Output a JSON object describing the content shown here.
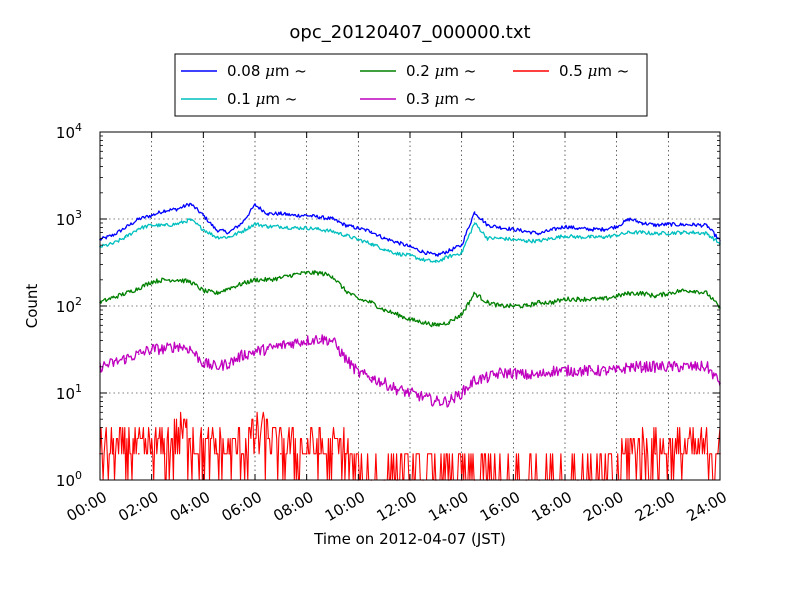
{
  "chart_data": {
    "type": "line",
    "title": "opc_20120407_000000.txt",
    "xlabel": "Time on 2012-04-07 (JST)",
    "ylabel": "Count",
    "x_scale": "time",
    "y_scale": "log",
    "xlim": [
      "00:00",
      "24:00"
    ],
    "ylim": [
      1,
      10000
    ],
    "grid": true,
    "legend_position": "top-center, above plot",
    "x_ticks": [
      "00:00",
      "02:00",
      "04:00",
      "06:00",
      "08:00",
      "10:00",
      "12:00",
      "14:00",
      "16:00",
      "18:00",
      "20:00",
      "22:00",
      "24:00"
    ],
    "y_ticks": [
      {
        "value": 1,
        "base": "10",
        "exp": "0"
      },
      {
        "value": 10,
        "base": "10",
        "exp": "1"
      },
      {
        "value": 100,
        "base": "10",
        "exp": "2"
      },
      {
        "value": 1000,
        "base": "10",
        "exp": "3"
      },
      {
        "value": 10000,
        "base": "10",
        "exp": "4"
      }
    ],
    "x_hours": [
      0,
      0.5,
      1,
      1.5,
      2,
      2.5,
      3,
      3.5,
      4,
      4.5,
      5,
      5.5,
      6,
      6.5,
      7,
      7.5,
      8,
      8.5,
      9,
      9.5,
      10,
      10.5,
      11,
      11.5,
      12,
      12.5,
      13,
      13.5,
      14,
      14.5,
      15,
      15.5,
      16,
      16.5,
      17,
      17.5,
      18,
      18.5,
      19,
      19.5,
      20,
      20.5,
      21,
      21.5,
      22,
      22.5,
      23,
      23.5,
      24
    ],
    "series": [
      {
        "name": "0.08 μm ~",
        "legend_prefix": "0.08 ",
        "legend_suffix": " ~",
        "color": "#0000ff",
        "values": [
          580,
          650,
          800,
          1000,
          1100,
          1250,
          1300,
          1500,
          1100,
          750,
          700,
          900,
          1450,
          1150,
          1150,
          1100,
          1100,
          1050,
          1000,
          850,
          780,
          720,
          600,
          540,
          480,
          420,
          380,
          430,
          500,
          1200,
          850,
          800,
          760,
          720,
          680,
          750,
          820,
          780,
          760,
          760,
          820,
          1000,
          900,
          850,
          870,
          860,
          860,
          840,
          560
        ]
      },
      {
        "name": "0.1 μm ~",
        "legend_prefix": "0.1 ",
        "legend_suffix": " ~",
        "color": "#00bfbf",
        "values": [
          480,
          520,
          620,
          780,
          850,
          840,
          880,
          980,
          760,
          620,
          620,
          720,
          880,
          820,
          820,
          790,
          790,
          760,
          720,
          650,
          580,
          520,
          450,
          400,
          380,
          340,
          320,
          370,
          410,
          900,
          600,
          600,
          580,
          560,
          560,
          600,
          640,
          620,
          620,
          620,
          650,
          700,
          700,
          680,
          690,
          700,
          700,
          680,
          520
        ]
      },
      {
        "name": "0.2 μm ~",
        "legend_prefix": "0.2 ",
        "legend_suffix": " ~",
        "color": "#008000",
        "values": [
          110,
          125,
          140,
          160,
          190,
          200,
          200,
          190,
          150,
          140,
          160,
          180,
          200,
          200,
          210,
          230,
          240,
          240,
          220,
          150,
          120,
          110,
          90,
          80,
          70,
          65,
          60,
          65,
          80,
          140,
          110,
          100,
          100,
          100,
          110,
          110,
          120,
          120,
          120,
          120,
          130,
          140,
          140,
          130,
          140,
          150,
          150,
          140,
          95
        ]
      },
      {
        "name": "0.3 μm ~",
        "legend_prefix": "0.3 ",
        "legend_suffix": " ~",
        "color": "#bf00bf",
        "values": [
          20,
          22,
          25,
          28,
          32,
          32,
          35,
          32,
          22,
          20,
          22,
          27,
          30,
          32,
          35,
          38,
          40,
          42,
          40,
          25,
          17,
          15,
          13,
          11,
          10,
          9,
          8,
          8,
          10,
          14,
          15,
          17,
          17,
          16,
          16,
          18,
          18,
          18,
          18,
          18,
          18,
          20,
          20,
          20,
          20,
          20,
          20,
          20,
          13
        ]
      },
      {
        "name": "0.5 μm ~",
        "legend_prefix": "0.5 ",
        "legend_suffix": " ~",
        "color": "#ff0000",
        "values": [
          2,
          2,
          2,
          2,
          2,
          2,
          3,
          3,
          2,
          2,
          2,
          2,
          3,
          3,
          2,
          2,
          2,
          2,
          2,
          2,
          1,
          1,
          1,
          1,
          1,
          1,
          1,
          1,
          1,
          1,
          1,
          1,
          1,
          1,
          1,
          1,
          1,
          1,
          1,
          1,
          1,
          2,
          2,
          2,
          2,
          2,
          2,
          2,
          2
        ]
      }
    ]
  }
}
